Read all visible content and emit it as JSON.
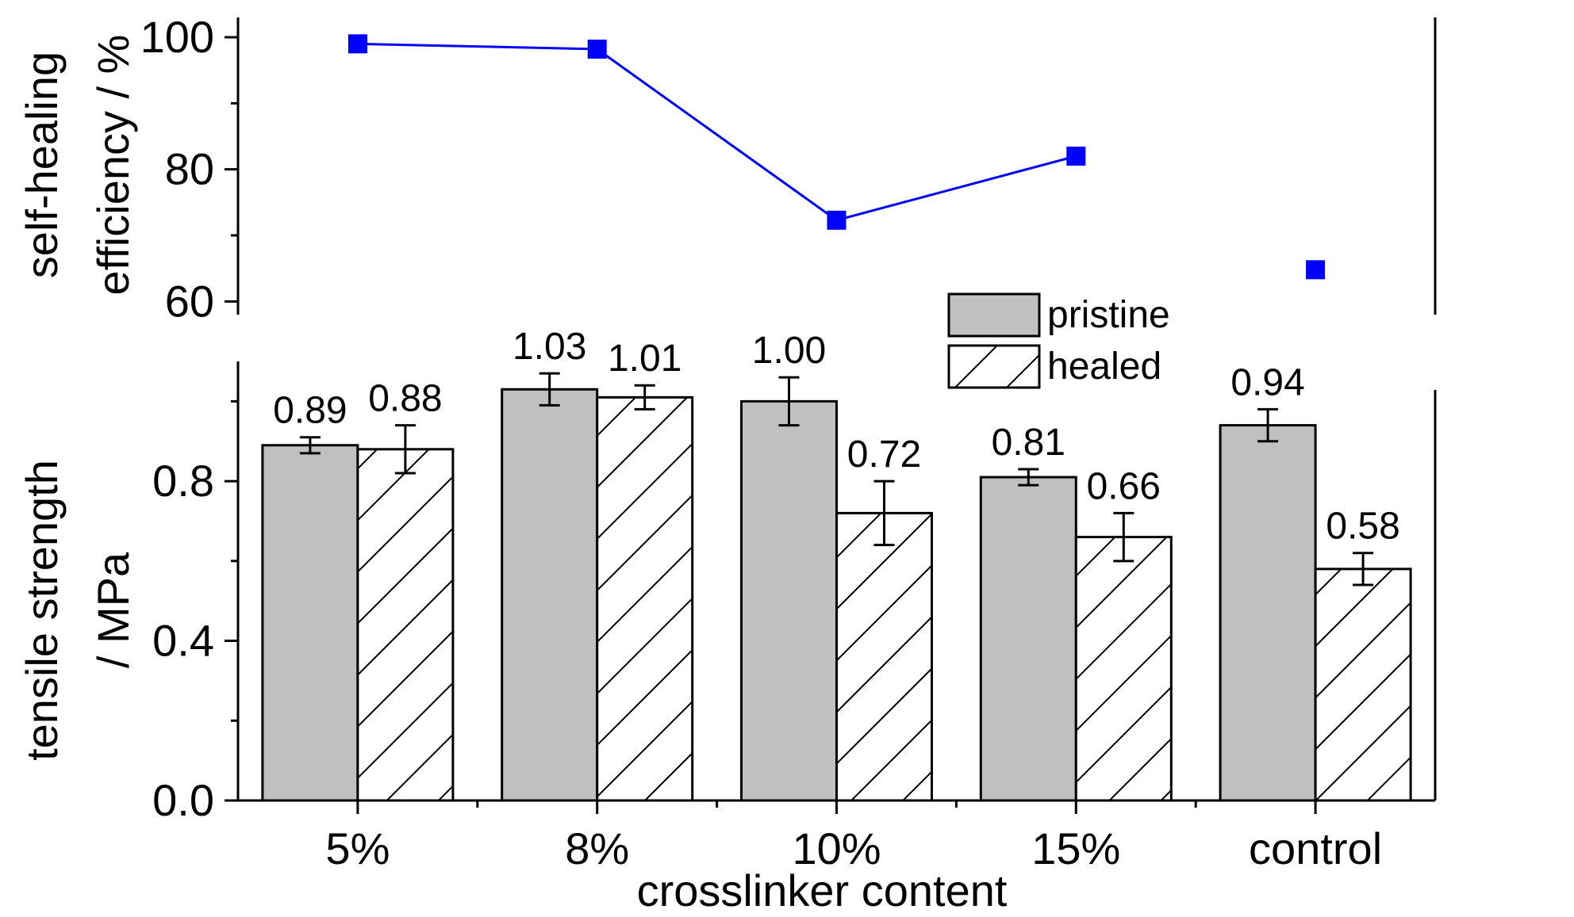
{
  "chart_data": [
    {
      "type": "line",
      "ylabel_lines": [
        "self-healing",
        "efficiency / %"
      ],
      "yticks": [
        "60",
        "80",
        "100"
      ],
      "ylim": [
        58,
        103
      ],
      "marker": "square",
      "series_color": "#0000ff",
      "series": [
        {
          "categories": [
            "5%",
            "8%",
            "10%",
            "15%",
            "control"
          ],
          "values": [
            99,
            98.2,
            72.3,
            82,
            64.8
          ]
        }
      ],
      "connected_points": 4
    },
    {
      "type": "bar",
      "categories": [
        "5%",
        "8%",
        "10%",
        "15%",
        "control"
      ],
      "xlabel": "crosslinker content",
      "ylabel_lines": [
        "tensile strength",
        "/ MPa"
      ],
      "yticks": [
        "0.0",
        "0.4",
        "0.8"
      ],
      "ylim": [
        0,
        1.1
      ],
      "legend_position": "top-right",
      "series": [
        {
          "name": "pristine",
          "pattern": "solid-gray",
          "color": "#c0c0c0",
          "values": [
            0.89,
            1.03,
            1.0,
            0.81,
            0.94
          ],
          "labels": [
            "0.89",
            "1.03",
            "1.00",
            "0.81",
            "0.94"
          ],
          "errors": [
            0.02,
            0.04,
            0.06,
            0.02,
            0.04
          ]
        },
        {
          "name": "healed",
          "pattern": "hatched",
          "color": "#ffffff",
          "values": [
            0.88,
            1.01,
            0.72,
            0.66,
            0.58
          ],
          "labels": [
            "0.88",
            "1.01",
            "0.72",
            "0.66",
            "0.58"
          ],
          "errors": [
            0.06,
            0.03,
            0.08,
            0.06,
            0.04
          ]
        }
      ]
    }
  ]
}
